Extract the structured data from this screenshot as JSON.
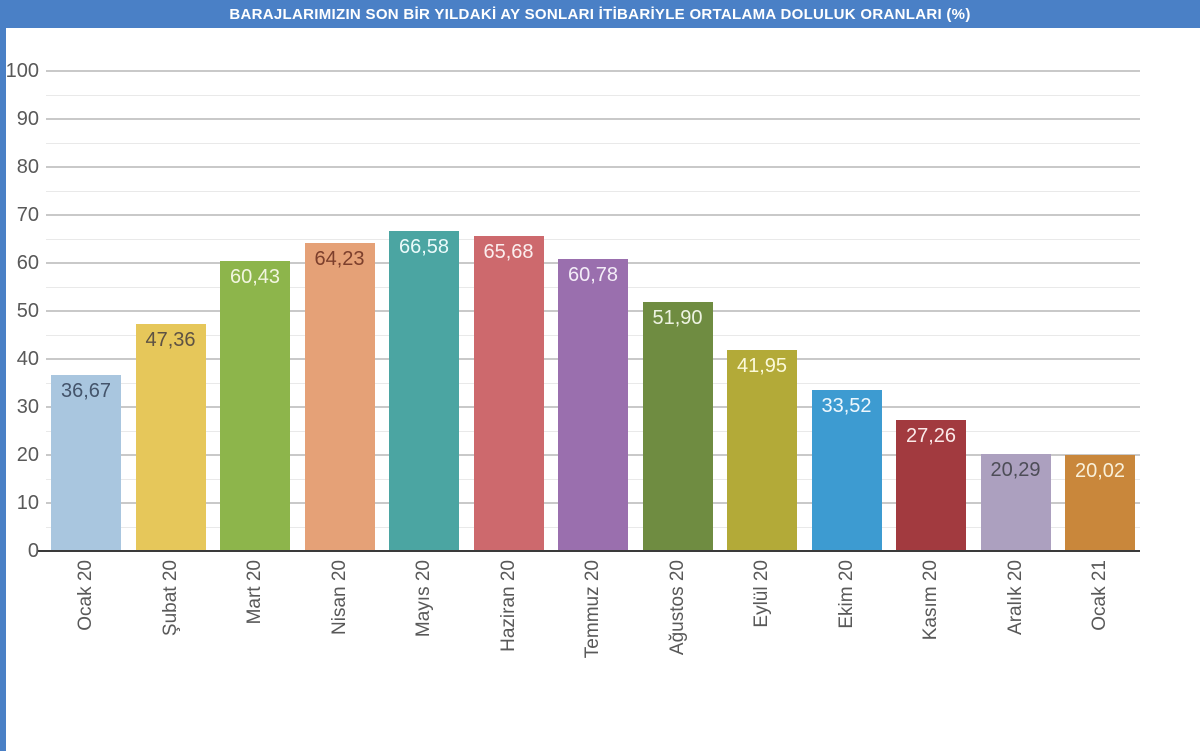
{
  "header": {
    "title": "BARAJLARIMIZIN SON BİR YILDAKİ AY SONLARI İTİBARİYLE ORTALAMA DOLULUK ORANLARI (%)",
    "bg_color": "#4a80c6",
    "text_color": "#ffffff"
  },
  "chart_data": {
    "type": "bar",
    "title": "BARAJLARIMIZIN SON BİR YILDAKİ AY SONLARI İTİBARİYLE ORTALAMA DOLULUK ORANLARI (%)",
    "xlabel": "",
    "ylabel": "",
    "ylim": [
      0,
      100
    ],
    "y_ticks": [
      0,
      10,
      20,
      30,
      40,
      50,
      60,
      70,
      80,
      90,
      100
    ],
    "minor_grid_step": 5,
    "grid": "horizontal major every 10, minor every 5",
    "legend": "none",
    "categories": [
      "Ocak 20",
      "Şubat 20",
      "Mart 20",
      "Nisan 20",
      "Mayıs 20",
      "Haziran 20",
      "Temmuz 20",
      "Ağustos 20",
      "Eylül 20",
      "Ekim 20",
      "Kasım 20",
      "Aralık 20",
      "Ocak 21"
    ],
    "values": [
      36.67,
      47.36,
      60.43,
      64.23,
      66.58,
      65.68,
      60.78,
      51.9,
      41.95,
      33.52,
      27.26,
      20.29,
      20.02
    ],
    "value_labels": [
      "36,67",
      "47,36",
      "60,43",
      "64,23",
      "66,58",
      "65,68",
      "60,78",
      "51,90",
      "41,95",
      "33,52",
      "27,26",
      "20,29",
      "20,02"
    ],
    "bar_colors": [
      "#a9c6df",
      "#e6c75a",
      "#8db54b",
      "#e5a177",
      "#4ba5a2",
      "#cd696d",
      "#9a6fae",
      "#6f8c41",
      "#b3aa38",
      "#3d9bd1",
      "#a23a3f",
      "#aca0bf",
      "#c9873b"
    ],
    "value_label_colors": [
      "#44546b",
      "#5d5244",
      "#f2f5df",
      "#7c3f2c",
      "#eafafa",
      "#fbeeee",
      "#f3ecf7",
      "#eef3e2",
      "#fbf9d9",
      "#eef7fd",
      "#fbe9e9",
      "#4d4d57",
      "#f9f0d8"
    ],
    "axis_label_color": "#595959",
    "axis_line_color": "#3a3a3a",
    "major_grid_color": "#c9c9c9",
    "minor_grid_color": "#e9e9e9"
  }
}
